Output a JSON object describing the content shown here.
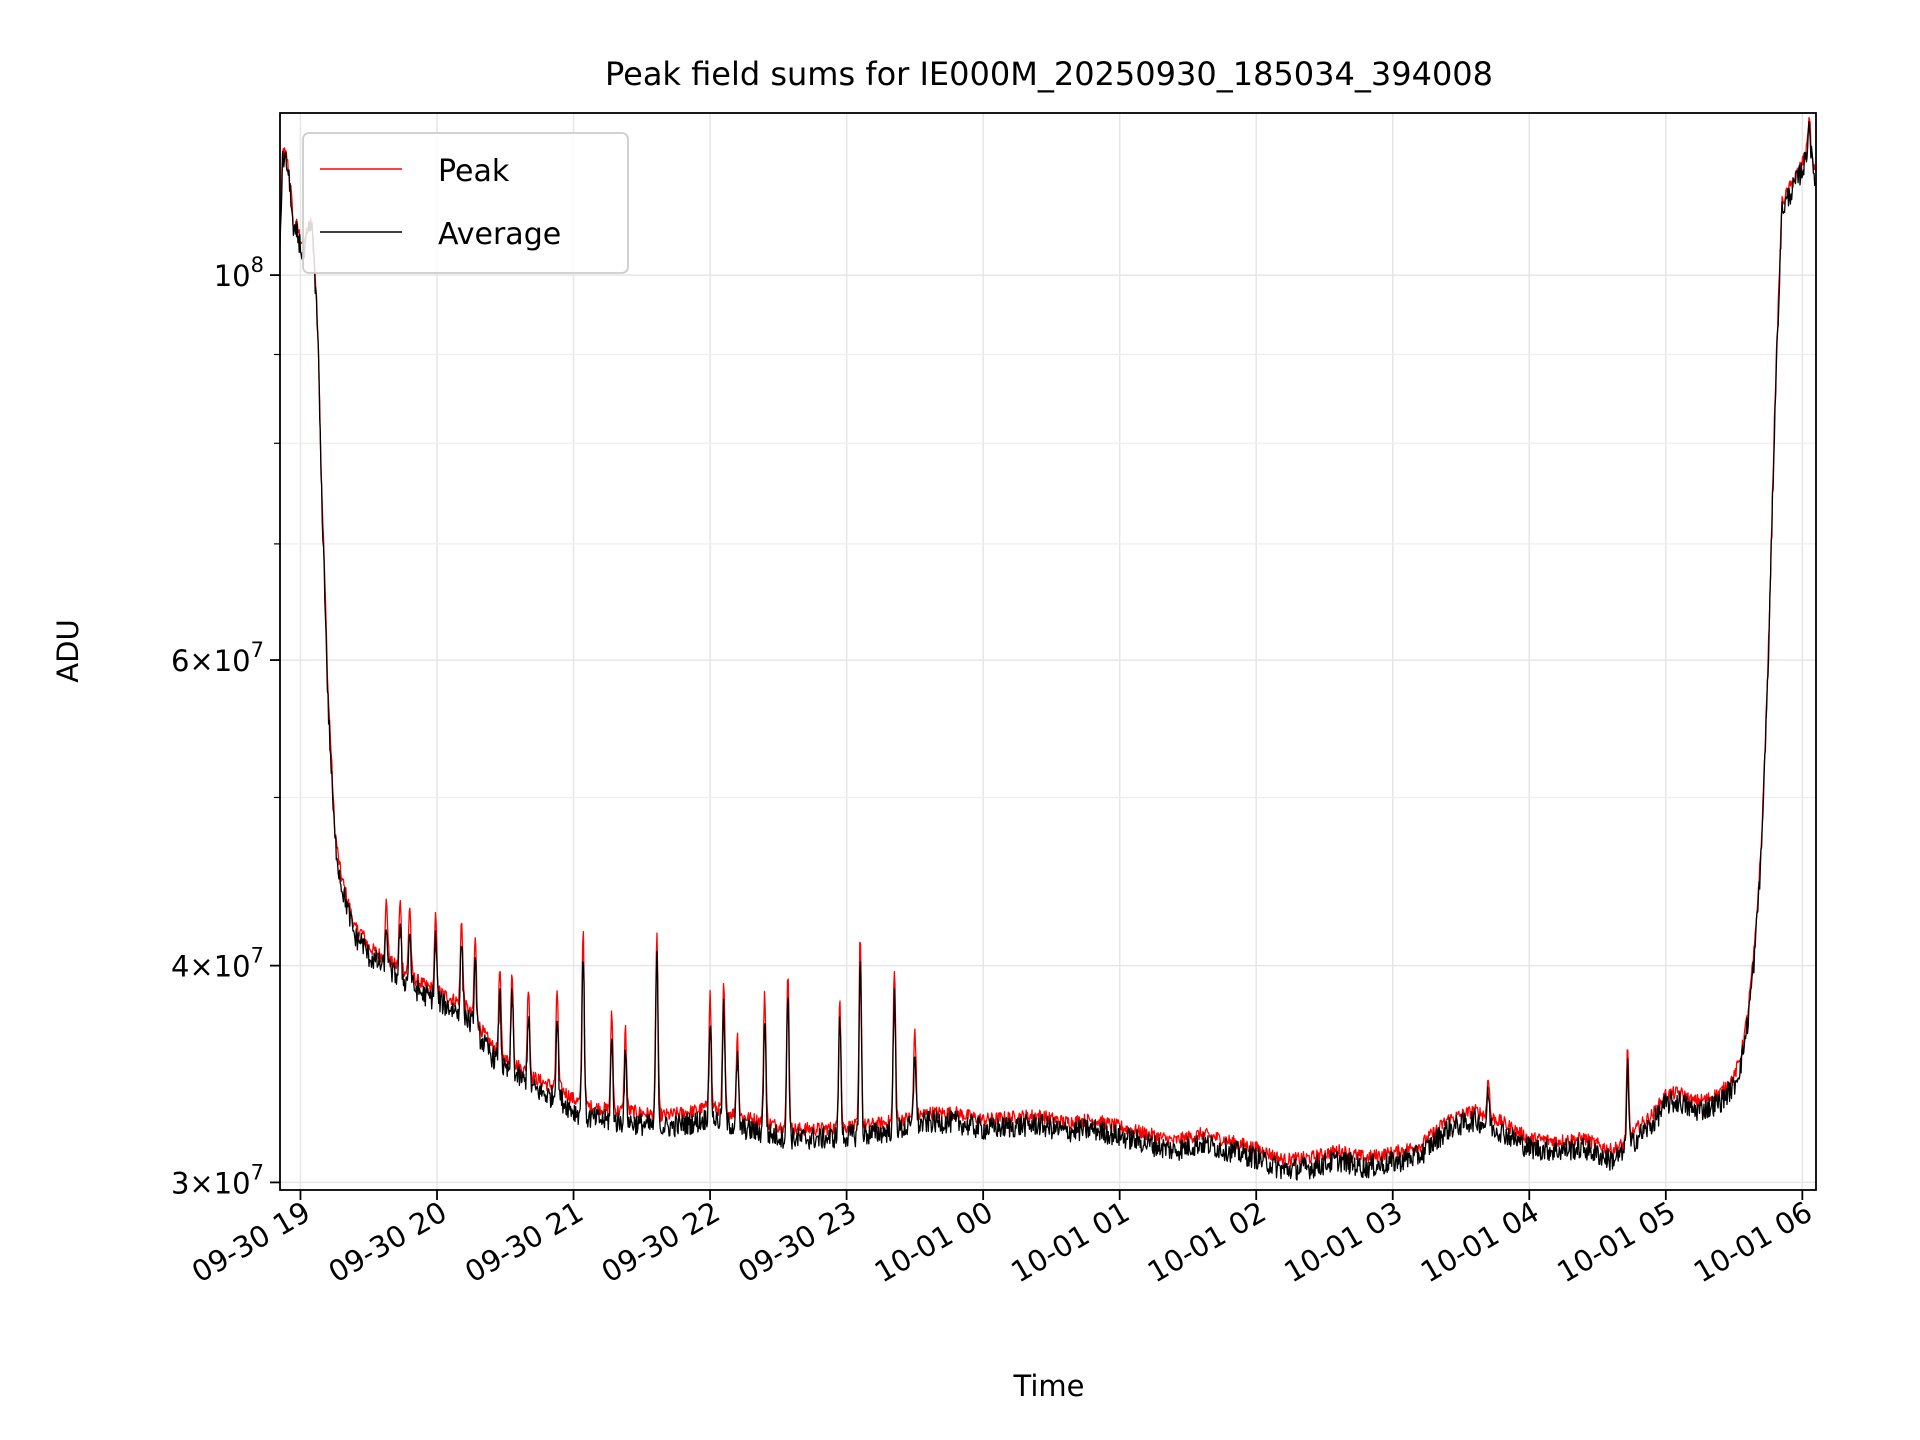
{
  "chart_data": {
    "type": "line",
    "title": "Peak field sums for IE000M_20250930_185034_394008",
    "xlabel": "Time",
    "ylabel": "ADU",
    "yscale": "log",
    "xlim": [
      18.85,
      30.1
    ],
    "ylim": [
      29700000,
      124000000
    ],
    "grid": true,
    "legend_position": "upper-left",
    "x_ticks": [
      {
        "value": 19,
        "label": "09-30 19"
      },
      {
        "value": 20,
        "label": "09-30 20"
      },
      {
        "value": 21,
        "label": "09-30 21"
      },
      {
        "value": 22,
        "label": "09-30 22"
      },
      {
        "value": 23,
        "label": "09-30 23"
      },
      {
        "value": 24,
        "label": "10-01 00"
      },
      {
        "value": 25,
        "label": "10-01 01"
      },
      {
        "value": 26,
        "label": "10-01 02"
      },
      {
        "value": 27,
        "label": "10-01 03"
      },
      {
        "value": 28,
        "label": "10-01 04"
      },
      {
        "value": 29,
        "label": "10-01 05"
      },
      {
        "value": 30,
        "label": "10-01 06"
      }
    ],
    "y_major_ticks": [
      {
        "value": 30000000,
        "mantissa": "3",
        "label": "3 × 10^7"
      },
      {
        "value": 40000000,
        "mantissa": "4",
        "label": "4 × 10^7"
      },
      {
        "value": 60000000,
        "mantissa": "6",
        "label": "6 × 10^7"
      },
      {
        "value": 100000000,
        "mantissa": "",
        "label": "10^8"
      }
    ],
    "y_minor_ticks": [
      50000000,
      70000000,
      80000000,
      90000000
    ],
    "tick_base": "10",
    "tick_exp_minor": "7",
    "tick_exp_major": "8",
    "series": [
      {
        "name": "Peak",
        "color": "#ff0000",
        "x": [
          18.85,
          18.87,
          18.9,
          18.93,
          18.95,
          18.97,
          19.0,
          19.02,
          19.05,
          19.08,
          19.1,
          19.13,
          19.15,
          19.18,
          19.2,
          19.23,
          19.25,
          19.28,
          19.3,
          19.35,
          19.4,
          19.45,
          19.5,
          19.6,
          19.7,
          19.8,
          19.9,
          20.0,
          20.1,
          20.2,
          20.3,
          20.4,
          20.5,
          20.6,
          20.7,
          20.8,
          20.9,
          21.0,
          21.1,
          21.2,
          21.3,
          21.4,
          21.5,
          21.6,
          21.7,
          21.8,
          21.9,
          22.0,
          22.2,
          22.4,
          22.6,
          22.8,
          23.0,
          23.2,
          23.4,
          23.6,
          23.8,
          24.0,
          24.2,
          24.4,
          24.6,
          24.8,
          25.0,
          25.2,
          25.4,
          25.6,
          25.8,
          26.0,
          26.2,
          26.4,
          26.6,
          26.8,
          27.0,
          27.2,
          27.4,
          27.6,
          27.8,
          28.0,
          28.2,
          28.4,
          28.6,
          28.7,
          28.8,
          28.9,
          29.0,
          29.1,
          29.2,
          29.3,
          29.4,
          29.5,
          29.55,
          29.6,
          29.65,
          29.7,
          29.75,
          29.8,
          29.85,
          29.9,
          29.95,
          30.0,
          30.03,
          30.05,
          30.07,
          30.1
        ],
        "values": [
          105000000,
          118000000,
          117000000,
          112000000,
          106000000,
          107000000,
          105000000,
          104000000,
          106000000,
          108000000,
          103000000,
          92000000,
          78000000,
          66000000,
          58000000,
          52000000,
          48000000,
          46000000,
          45000000,
          43500000,
          42000000,
          41800000,
          41000000,
          40500000,
          40000000,
          39500000,
          39000000,
          38700000,
          38300000,
          38000000,
          37000000,
          36000000,
          35300000,
          35000000,
          34500000,
          34200000,
          34000000,
          33500000,
          33200000,
          33100000,
          33000000,
          33000000,
          32900000,
          32800000,
          32800000,
          32900000,
          33000000,
          33200000,
          32800000,
          32500000,
          32200000,
          32200000,
          32300000,
          32400000,
          32600000,
          32900000,
          32900000,
          32600000,
          32700000,
          32800000,
          32500000,
          32600000,
          32300000,
          32000000,
          31700000,
          32000000,
          31700000,
          31400000,
          30900000,
          31000000,
          31300000,
          31000000,
          31200000,
          31500000,
          32600000,
          33000000,
          32500000,
          31800000,
          31700000,
          31800000,
          31300000,
          31600000,
          32300000,
          32800000,
          33700000,
          33800000,
          33400000,
          33500000,
          33800000,
          34500000,
          35500000,
          37500000,
          41000000,
          47000000,
          60000000,
          85000000,
          110000000,
          112000000,
          114000000,
          116000000,
          118000000,
          124000000,
          117000000,
          114000000
        ]
      },
      {
        "name": "Average",
        "color": "#000000",
        "x": [
          18.85,
          18.87,
          18.9,
          18.93,
          18.95,
          18.97,
          19.0,
          19.02,
          19.05,
          19.08,
          19.1,
          19.13,
          19.15,
          19.18,
          19.2,
          19.23,
          19.25,
          19.28,
          19.3,
          19.35,
          19.4,
          19.45,
          19.5,
          19.6,
          19.7,
          19.8,
          19.9,
          20.0,
          20.1,
          20.2,
          20.3,
          20.4,
          20.5,
          20.6,
          20.7,
          20.8,
          20.9,
          21.0,
          21.1,
          21.2,
          21.3,
          21.4,
          21.5,
          21.6,
          21.7,
          21.8,
          21.9,
          22.0,
          22.2,
          22.4,
          22.6,
          22.8,
          23.0,
          23.2,
          23.4,
          23.6,
          23.8,
          24.0,
          24.2,
          24.4,
          24.6,
          24.8,
          25.0,
          25.2,
          25.4,
          25.6,
          25.8,
          26.0,
          26.2,
          26.4,
          26.6,
          26.8,
          27.0,
          27.2,
          27.4,
          27.6,
          27.8,
          28.0,
          28.2,
          28.4,
          28.6,
          28.7,
          28.8,
          28.9,
          29.0,
          29.1,
          29.2,
          29.3,
          29.4,
          29.5,
          29.55,
          29.6,
          29.65,
          29.7,
          29.75,
          29.8,
          29.85,
          29.9,
          29.95,
          30.0,
          30.03,
          30.05,
          30.07,
          30.1
        ],
        "values": [
          104000000,
          117000000,
          116000000,
          111000000,
          105000000,
          106000000,
          104000000,
          102000000,
          105000000,
          107000000,
          102000000,
          91000000,
          77000000,
          65000000,
          57000000,
          51000000,
          47500000,
          45500000,
          44500000,
          43000000,
          41500000,
          41300000,
          40500000,
          40000000,
          39500000,
          39000000,
          38500000,
          38200000,
          37800000,
          37500000,
          36500000,
          35500000,
          34800000,
          34500000,
          34000000,
          33700000,
          33500000,
          33000000,
          32700000,
          32600000,
          32500000,
          32500000,
          32400000,
          32300000,
          32300000,
          32400000,
          32500000,
          32700000,
          32300000,
          32000000,
          31800000,
          31800000,
          31900000,
          32000000,
          32200000,
          32500000,
          32500000,
          32200000,
          32300000,
          32400000,
          32100000,
          32200000,
          31900000,
          31600000,
          31300000,
          31600000,
          31300000,
          31000000,
          30500000,
          30600000,
          30900000,
          30600000,
          30800000,
          31100000,
          32200000,
          32600000,
          32100000,
          31400000,
          31300000,
          31400000,
          30900000,
          31200000,
          31900000,
          32400000,
          33300000,
          33400000,
          33000000,
          33100000,
          33400000,
          34100000,
          35100000,
          37100000,
          40500000,
          46500000,
          59500000,
          84000000,
          109000000,
          111000000,
          113000000,
          115000000,
          117000000,
          123000000,
          116000000,
          113000000
        ]
      }
    ],
    "spikes": [
      {
        "x": 19.63,
        "peak": 43600000,
        "avg": 42000000
      },
      {
        "x": 19.73,
        "peak": 43500000,
        "avg": 42000000
      },
      {
        "x": 19.8,
        "peak": 43300000,
        "avg": 41800000
      },
      {
        "x": 19.99,
        "peak": 42600000,
        "avg": 41500000
      },
      {
        "x": 20.18,
        "peak": 42500000,
        "avg": 41300000
      },
      {
        "x": 20.28,
        "peak": 41500000,
        "avg": 40300000
      },
      {
        "x": 20.46,
        "peak": 39800000,
        "avg": 38500000
      },
      {
        "x": 20.55,
        "peak": 39700000,
        "avg": 38500000
      },
      {
        "x": 20.67,
        "peak": 39000000,
        "avg": 37500000
      },
      {
        "x": 20.88,
        "peak": 38700000,
        "avg": 37400000
      },
      {
        "x": 21.07,
        "peak": 42000000,
        "avg": 40800000
      },
      {
        "x": 21.28,
        "peak": 37500000,
        "avg": 36200000
      },
      {
        "x": 21.38,
        "peak": 36800000,
        "avg": 35500000
      },
      {
        "x": 21.61,
        "peak": 41700000,
        "avg": 40500000
      },
      {
        "x": 22.0,
        "peak": 38500000,
        "avg": 37200000
      },
      {
        "x": 22.1,
        "peak": 39000000,
        "avg": 37800000
      },
      {
        "x": 22.2,
        "peak": 36500000,
        "avg": 35400000
      },
      {
        "x": 22.4,
        "peak": 38700000,
        "avg": 37300000
      },
      {
        "x": 22.57,
        "peak": 39800000,
        "avg": 38500000
      },
      {
        "x": 22.95,
        "peak": 38500000,
        "avg": 37300000
      },
      {
        "x": 23.1,
        "peak": 41700000,
        "avg": 40000000
      },
      {
        "x": 23.35,
        "peak": 40000000,
        "avg": 38400000
      },
      {
        "x": 23.5,
        "peak": 36800000,
        "avg": 35800000
      },
      {
        "x": 27.7,
        "peak": 34600000,
        "avg": 33800000
      },
      {
        "x": 28.72,
        "peak": 35700000,
        "avg": 35000000
      }
    ]
  }
}
